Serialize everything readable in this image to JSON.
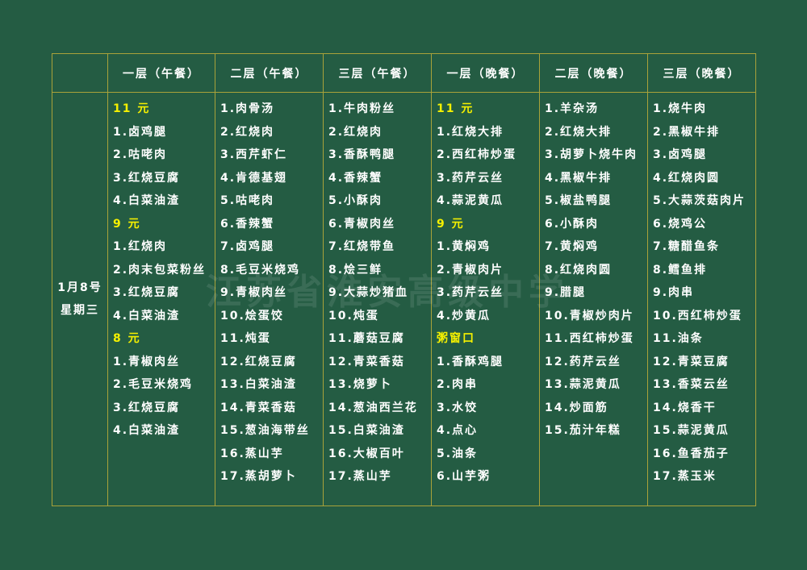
{
  "headers": [
    "一层（午餐）",
    "二层（午餐）",
    "三层（午餐）",
    "一层（晚餐）",
    "二层（晚餐）",
    "三层（晚餐）"
  ],
  "date": "1月8号",
  "weekday": "星期三",
  "watermark": "江苏省淮安高级中学",
  "colors": {
    "background": "#245c43",
    "border": "#a9a23a",
    "highlight": "#f5f000"
  },
  "columns": [
    [
      {
        "t": "11 元",
        "h": true
      },
      {
        "t": "1.卤鸡腿"
      },
      {
        "t": "2.咕咾肉"
      },
      {
        "t": "3.红烧豆腐"
      },
      {
        "t": "4.白菜油渣"
      },
      {
        "t": "9 元",
        "h": true
      },
      {
        "t": "1.红烧肉"
      },
      {
        "t": "2.肉末包菜粉丝"
      },
      {
        "t": "3.红烧豆腐"
      },
      {
        "t": "4.白菜油渣"
      },
      {
        "t": "8 元",
        "h": true
      },
      {
        "t": "1.青椒肉丝"
      },
      {
        "t": "2.毛豆米烧鸡"
      },
      {
        "t": "3.红烧豆腐"
      },
      {
        "t": "4.白菜油渣"
      }
    ],
    [
      {
        "t": "1.肉骨汤"
      },
      {
        "t": "2.红烧肉"
      },
      {
        "t": "3.西芹虾仁"
      },
      {
        "t": "4.肯德基翅"
      },
      {
        "t": "5.咕咾肉"
      },
      {
        "t": "6.香辣蟹"
      },
      {
        "t": "7.卤鸡腿"
      },
      {
        "t": "8.毛豆米烧鸡"
      },
      {
        "t": "9.青椒肉丝"
      },
      {
        "t": "10.烩蛋饺"
      },
      {
        "t": "11.炖蛋"
      },
      {
        "t": "12.红烧豆腐"
      },
      {
        "t": "13.白菜油渣"
      },
      {
        "t": "14.青菜香菇"
      },
      {
        "t": "15.葱油海带丝"
      },
      {
        "t": "16.蒸山芋"
      },
      {
        "t": "17.蒸胡萝卜"
      }
    ],
    [
      {
        "t": "1.牛肉粉丝"
      },
      {
        "t": "2.红烧肉"
      },
      {
        "t": "3.香酥鸭腿"
      },
      {
        "t": "4.香辣蟹"
      },
      {
        "t": "5.小酥肉"
      },
      {
        "t": "6.青椒肉丝"
      },
      {
        "t": "7.红烧带鱼"
      },
      {
        "t": "8.烩三鲜"
      },
      {
        "t": "9.大蒜炒猪血"
      },
      {
        "t": "10.炖蛋"
      },
      {
        "t": "11.蘑菇豆腐"
      },
      {
        "t": "12.青菜香菇"
      },
      {
        "t": "13.烧萝卜"
      },
      {
        "t": "14.葱油西兰花"
      },
      {
        "t": "15.白菜油渣"
      },
      {
        "t": "16.大椒百叶"
      },
      {
        "t": "17.蒸山芋"
      }
    ],
    [
      {
        "t": "11 元",
        "h": true
      },
      {
        "t": "1.红烧大排"
      },
      {
        "t": "2.西红柿炒蛋"
      },
      {
        "t": "3.药芹云丝"
      },
      {
        "t": "4.蒜泥黄瓜"
      },
      {
        "t": "9 元",
        "h": true
      },
      {
        "t": "1.黄焖鸡"
      },
      {
        "t": "2.青椒肉片"
      },
      {
        "t": "3.药芹云丝"
      },
      {
        "t": "4.炒黄瓜"
      },
      {
        "t": "粥窗口",
        "h": true
      },
      {
        "t": "1.香酥鸡腿"
      },
      {
        "t": "2.肉串"
      },
      {
        "t": "3.水饺"
      },
      {
        "t": "4.点心"
      },
      {
        "t": "5.油条"
      },
      {
        "t": "6.山芋粥"
      }
    ],
    [
      {
        "t": "1.羊杂汤"
      },
      {
        "t": "2.红烧大排"
      },
      {
        "t": "3.胡萝卜烧牛肉"
      },
      {
        "t": "4.黑椒牛排"
      },
      {
        "t": "5.椒盐鸭腿"
      },
      {
        "t": "6.小酥肉"
      },
      {
        "t": "7.黄焖鸡"
      },
      {
        "t": "8.红烧肉圆"
      },
      {
        "t": "9.腊腿"
      },
      {
        "t": "10.青椒炒肉片"
      },
      {
        "t": "11.西红柿炒蛋"
      },
      {
        "t": "12.药芹云丝"
      },
      {
        "t": "13.蒜泥黄瓜"
      },
      {
        "t": "14.炒面筋"
      },
      {
        "t": "15.茄汁年糕"
      }
    ],
    [
      {
        "t": "1.烧牛肉"
      },
      {
        "t": "2.黑椒牛排"
      },
      {
        "t": "3.卤鸡腿"
      },
      {
        "t": "4.红烧肉圆"
      },
      {
        "t": "5.大蒜茨菇肉片"
      },
      {
        "t": "6.烧鸡公"
      },
      {
        "t": "7.糖醋鱼条"
      },
      {
        "t": "8.鳕鱼排"
      },
      {
        "t": "9.肉串"
      },
      {
        "t": "10.西红柿炒蛋"
      },
      {
        "t": "11.油条"
      },
      {
        "t": "12.青菜豆腐"
      },
      {
        "t": "13.香菜云丝"
      },
      {
        "t": "14.烧香干"
      },
      {
        "t": "15.蒜泥黄瓜"
      },
      {
        "t": "16.鱼香茄子"
      },
      {
        "t": "17.蒸玉米"
      }
    ]
  ]
}
